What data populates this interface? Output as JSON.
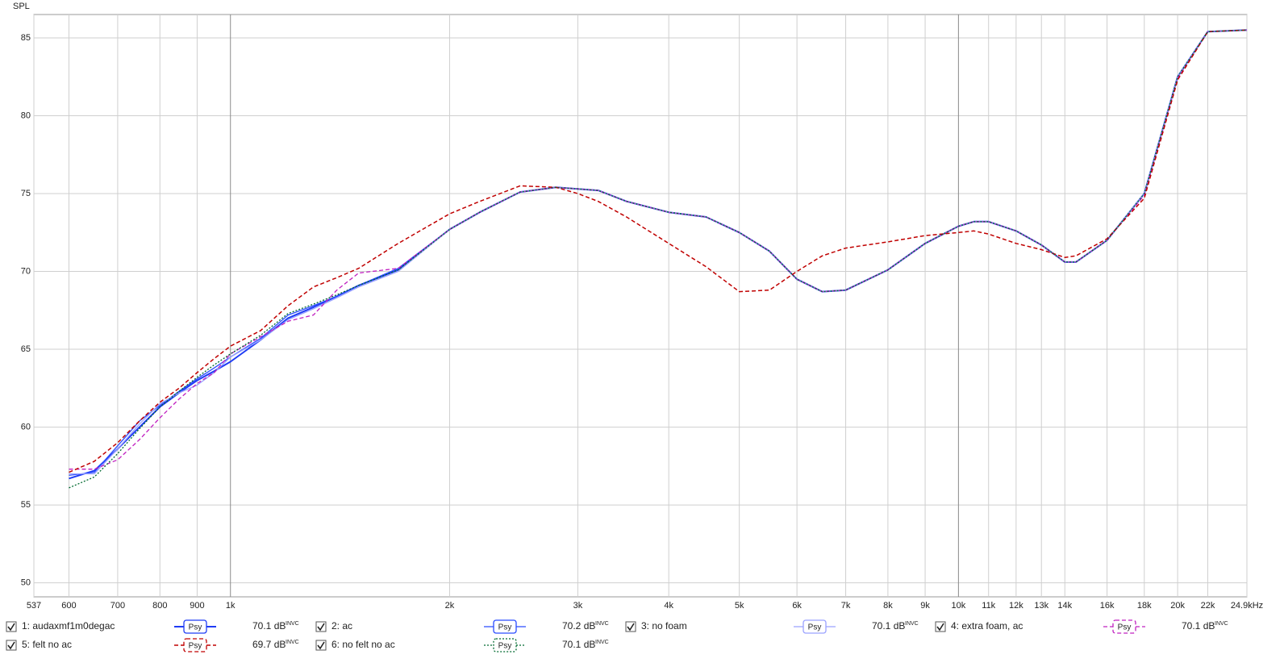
{
  "chart_data": {
    "type": "line",
    "y_label": "SPL",
    "log_x": true,
    "grid": true,
    "xlim": [
      537,
      24900
    ],
    "ylim": [
      49.1,
      86.5
    ],
    "yticks": [
      50,
      55,
      60,
      65,
      70,
      75,
      80,
      85
    ],
    "xticks": [
      537,
      600,
      700,
      800,
      900,
      {
        "value": 1000,
        "label": "1k"
      },
      {
        "value": 2000,
        "label": "2k"
      },
      {
        "value": 3000,
        "label": "3k"
      },
      {
        "value": 4000,
        "label": "4k"
      },
      {
        "value": 5000,
        "label": "5k"
      },
      {
        "value": 6000,
        "label": "6k"
      },
      {
        "value": 7000,
        "label": "7k"
      },
      {
        "value": 8000,
        "label": "8k"
      },
      {
        "value": 9000,
        "label": "9k"
      },
      {
        "value": 10000,
        "label": "10k"
      },
      {
        "value": 11000,
        "label": "11k"
      },
      {
        "value": 12000,
        "label": "12k"
      },
      {
        "value": 13000,
        "label": "13k"
      },
      {
        "value": 14000,
        "label": "14k"
      },
      {
        "value": 16000,
        "label": "16k"
      },
      {
        "value": 18000,
        "label": "18k"
      },
      {
        "value": 20000,
        "label": "20k"
      },
      {
        "value": 22000,
        "label": "22k"
      },
      {
        "value": 24900,
        "label": "24.9kHz"
      }
    ],
    "x": [
      600,
      650,
      700,
      750,
      800,
      850,
      900,
      950,
      1000,
      1100,
      1200,
      1300,
      1400,
      1500,
      1700,
      2000,
      2200,
      2500,
      2800,
      3000,
      3200,
      3500,
      4000,
      4500,
      5000,
      5500,
      6000,
      6500,
      7000,
      8000,
      9000,
      10000,
      10500,
      11000,
      12000,
      13000,
      14000,
      14500,
      16000,
      18000,
      20000,
      22000,
      24900
    ],
    "series": [
      {
        "name": "1: audaxmf1m0degac",
        "color": "#1f3cf5",
        "dash": "solid",
        "width": 2,
        "smoothing": "Psy",
        "level_label": "70.1 dB",
        "level_mode": "INVC",
        "values": [
          56.7,
          57.2,
          58.6,
          60.0,
          61.3,
          62.2,
          63.0,
          63.6,
          64.2,
          65.6,
          67.0,
          67.7,
          68.4,
          69.1,
          70.1,
          72.7,
          73.8,
          75.1,
          75.4,
          75.3,
          75.2,
          74.5,
          73.8,
          73.5,
          72.5,
          71.3,
          69.5,
          68.7,
          68.8,
          70.1,
          71.8,
          72.9,
          73.2,
          73.2,
          72.6,
          71.7,
          70.6,
          70.6,
          72.0,
          75.0,
          82.5,
          85.4,
          85.5
        ]
      },
      {
        "name": "2: ac",
        "color": "#2a4cff",
        "dash": "solid",
        "width": 1.3,
        "smoothing": "Psy",
        "level_label": "70.2 dB",
        "level_mode": "INVC",
        "values": [
          56.9,
          57.1,
          58.8,
          60.4,
          61.4,
          62.3,
          63.1,
          63.8,
          64.5,
          65.7,
          67.2,
          67.8,
          68.4,
          69.1,
          70.2,
          72.7,
          73.8,
          75.1,
          75.4,
          75.3,
          75.2,
          74.5,
          73.8,
          73.5,
          72.5,
          71.3,
          69.5,
          68.7,
          68.8,
          70.1,
          71.8,
          72.9,
          73.2,
          73.2,
          72.6,
          71.7,
          70.6,
          70.6,
          72.0,
          75.0,
          82.5,
          85.4,
          85.5
        ]
      },
      {
        "name": "3: no foam",
        "color": "#9aa2ff",
        "dash": "solid",
        "width": 1.3,
        "smoothing": "Psy",
        "level_label": "70.1 dB",
        "level_mode": "INVC",
        "values": [
          57.0,
          57.0,
          58.6,
          60.2,
          61.5,
          62.2,
          62.7,
          63.5,
          64.5,
          65.6,
          66.9,
          67.6,
          68.3,
          69.0,
          70.0,
          72.7,
          73.8,
          75.1,
          75.4,
          75.3,
          75.2,
          74.5,
          73.8,
          73.5,
          72.5,
          71.3,
          69.5,
          68.7,
          68.8,
          70.1,
          71.8,
          72.9,
          73.2,
          73.2,
          72.6,
          71.7,
          70.6,
          70.6,
          72.0,
          75.0,
          82.5,
          85.4,
          85.5
        ]
      },
      {
        "name": "4: extra foam, ac",
        "color": "#c020c0",
        "dash": "5,3",
        "width": 1.3,
        "smoothing": "Psy",
        "level_label": "70.1 dB",
        "level_mode": "INVC",
        "values": [
          57.3,
          57.3,
          57.9,
          59.2,
          60.6,
          61.8,
          62.8,
          63.5,
          64.7,
          65.8,
          66.8,
          67.2,
          68.8,
          69.9,
          70.2,
          72.7,
          73.8,
          75.1,
          75.4,
          75.3,
          75.2,
          74.5,
          73.8,
          73.5,
          72.5,
          71.3,
          69.5,
          68.7,
          68.8,
          70.1,
          71.8,
          72.9,
          73.2,
          73.2,
          72.6,
          71.7,
          70.6,
          70.6,
          72.0,
          74.9,
          82.4,
          85.4,
          85.5
        ]
      },
      {
        "name": "5: felt no ac",
        "color": "#c00000",
        "dash": "5,3",
        "width": 1.5,
        "smoothing": "Psy",
        "level_label": "69.7 dB",
        "level_mode": "INVC",
        "values": [
          57.1,
          57.8,
          59.0,
          60.4,
          61.6,
          62.5,
          63.5,
          64.4,
          65.2,
          66.2,
          67.8,
          69.0,
          69.6,
          70.2,
          71.8,
          73.7,
          74.5,
          75.5,
          75.4,
          75.0,
          74.5,
          73.5,
          71.8,
          70.3,
          68.7,
          68.8,
          70.0,
          71.0,
          71.5,
          71.9,
          72.3,
          72.5,
          72.6,
          72.4,
          71.8,
          71.4,
          70.9,
          71.0,
          72.1,
          74.7,
          82.3,
          85.4,
          85.5
        ]
      },
      {
        "name": "6: no felt no ac",
        "color": "#006a30",
        "dash": "2,2",
        "width": 1.3,
        "smoothing": "Psy",
        "level_label": "70.1 dB",
        "level_mode": "INVC",
        "values": [
          56.1,
          56.8,
          58.3,
          59.9,
          61.3,
          62.3,
          63.2,
          64.0,
          64.7,
          65.9,
          67.3,
          67.9,
          68.5,
          69.1,
          70.1,
          72.7,
          73.8,
          75.1,
          75.4,
          75.3,
          75.2,
          74.5,
          73.8,
          73.5,
          72.5,
          71.3,
          69.5,
          68.7,
          68.8,
          70.1,
          71.8,
          72.9,
          73.2,
          73.2,
          72.6,
          71.7,
          70.6,
          70.6,
          72.0,
          75.0,
          82.5,
          85.4,
          85.5
        ]
      }
    ]
  }
}
